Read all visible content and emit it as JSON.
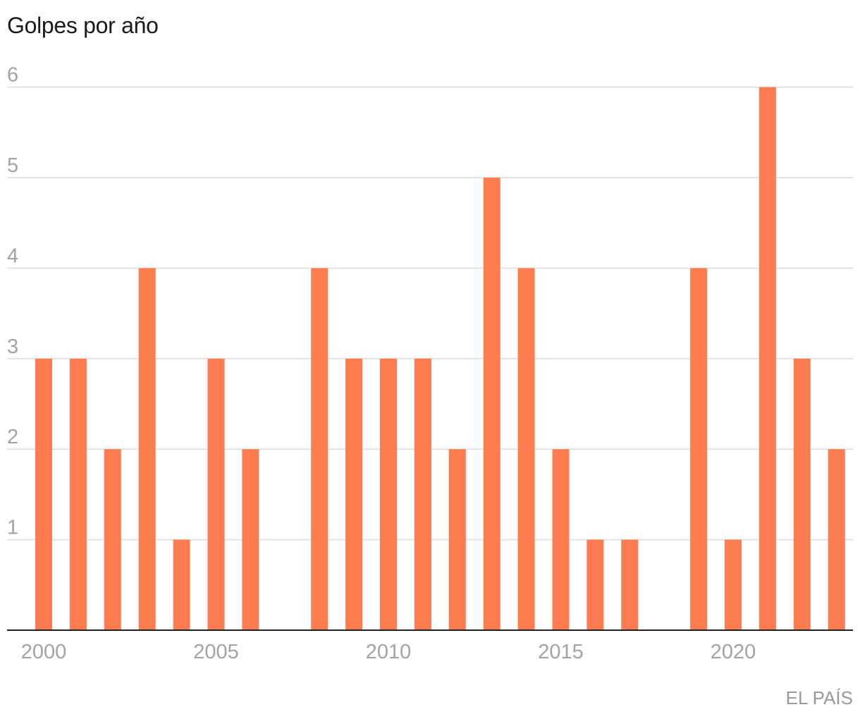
{
  "title": "Golpes por año",
  "source": "EL PAÍS",
  "colors": {
    "bar": "#ff7c50",
    "grid": "#dcdcdc",
    "axis": "#222222",
    "tick_text": "#a3a3a3"
  },
  "chart_data": {
    "type": "bar",
    "title": "Golpes por año",
    "xlabel": "",
    "ylabel": "",
    "x": [
      2000,
      2001,
      2002,
      2003,
      2004,
      2005,
      2006,
      2007,
      2008,
      2009,
      2010,
      2011,
      2012,
      2013,
      2014,
      2015,
      2016,
      2017,
      2018,
      2019,
      2020,
      2021,
      2022,
      2023
    ],
    "values": [
      3,
      3,
      2,
      4,
      1,
      3,
      2,
      0,
      4,
      3,
      3,
      3,
      2,
      5,
      4,
      2,
      1,
      1,
      0,
      4,
      1,
      6,
      3,
      2
    ],
    "xticks": [
      2000,
      2005,
      2010,
      2015,
      2020
    ],
    "yticks": [
      1,
      2,
      3,
      4,
      5,
      6
    ],
    "ylim": [
      0,
      6
    ],
    "grid": true,
    "legend": "none"
  }
}
